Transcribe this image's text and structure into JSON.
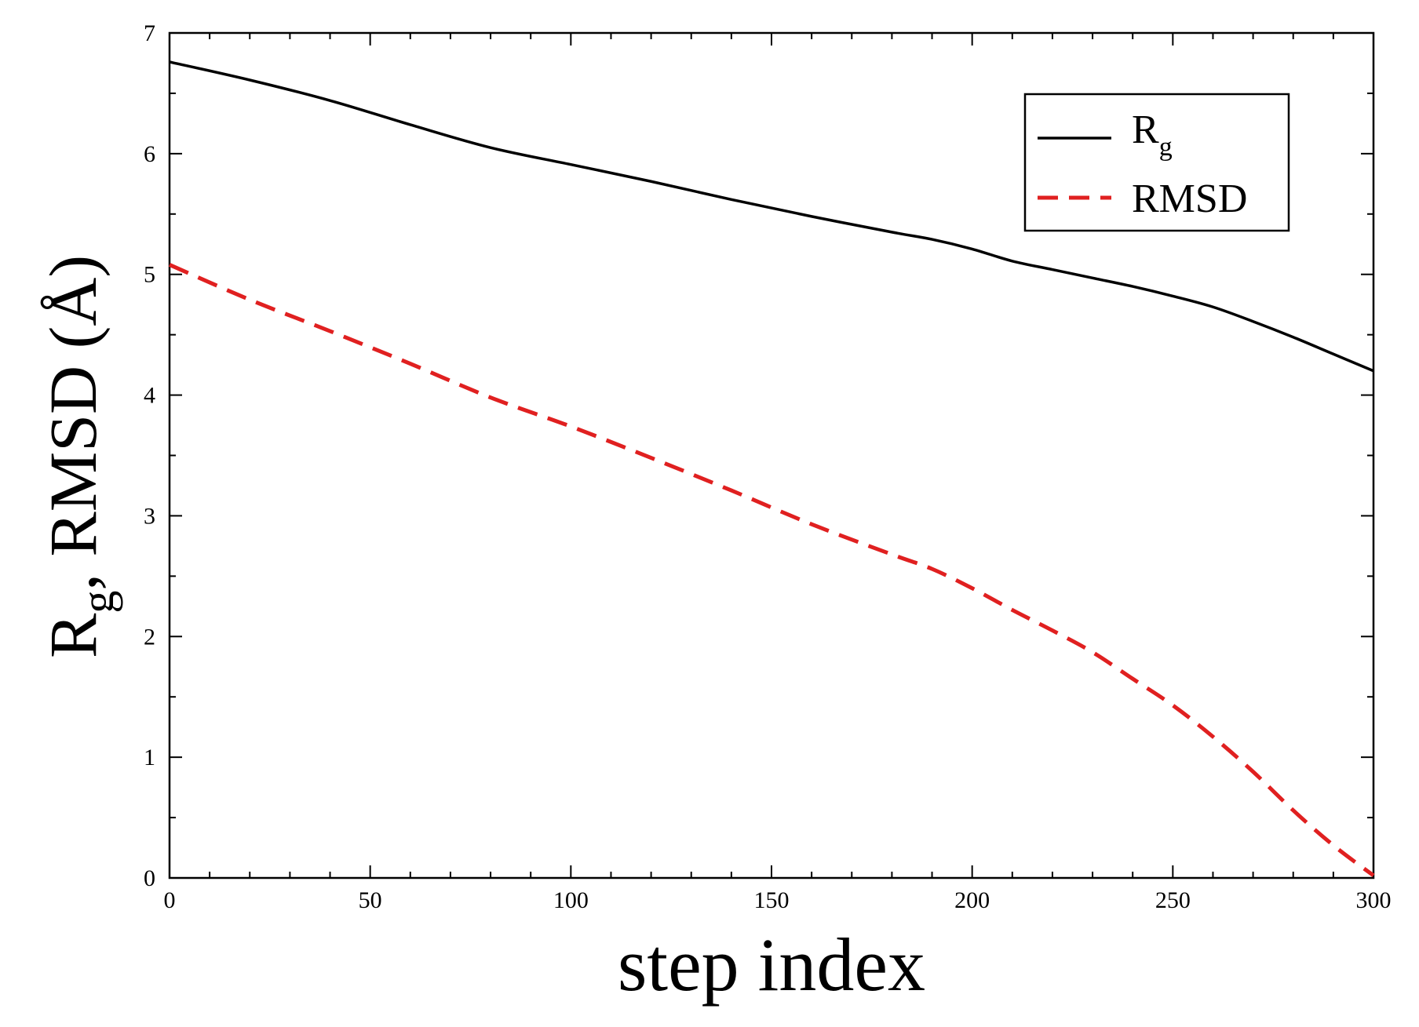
{
  "chart_data": {
    "type": "line",
    "xlabel": "step index",
    "ylabel": {
      "main": "R",
      "sub": "g",
      "rest": ", RMSD (Å)"
    },
    "xlim": [
      0,
      300
    ],
    "ylim": [
      0,
      7
    ],
    "xticks": [
      0,
      50,
      100,
      150,
      200,
      250,
      300
    ],
    "yticks": [
      0,
      1,
      2,
      3,
      4,
      5,
      6,
      7
    ],
    "xtick_labels": [
      "0",
      "50",
      "100",
      "150",
      "200",
      "250",
      "300"
    ],
    "ytick_labels": [
      "0",
      "1",
      "2",
      "3",
      "4",
      "5",
      "6",
      "7"
    ],
    "x_minor_step": 10,
    "y_minor_step": 0.5,
    "grid": false,
    "legend_position": "top-right",
    "series": [
      {
        "name": "R",
        "name_sub": "g",
        "color": "#000000",
        "style": "solid",
        "x": [
          0,
          20,
          40,
          60,
          80,
          100,
          120,
          140,
          160,
          180,
          190,
          200,
          210,
          220,
          230,
          240,
          250,
          260,
          270,
          280,
          290,
          300
        ],
        "y": [
          6.76,
          6.61,
          6.44,
          6.24,
          6.05,
          5.91,
          5.77,
          5.62,
          5.48,
          5.35,
          5.29,
          5.21,
          5.11,
          5.04,
          4.97,
          4.9,
          4.82,
          4.73,
          4.61,
          4.48,
          4.34,
          4.2
        ]
      },
      {
        "name": "RMSD",
        "color": "#e02020",
        "style": "dashed",
        "x": [
          0,
          20,
          40,
          60,
          80,
          100,
          120,
          140,
          160,
          180,
          190,
          200,
          210,
          220,
          230,
          240,
          250,
          260,
          270,
          280,
          290,
          300
        ],
        "y": [
          5.08,
          4.79,
          4.53,
          4.26,
          3.98,
          3.74,
          3.48,
          3.21,
          2.93,
          2.68,
          2.56,
          2.4,
          2.22,
          2.05,
          1.87,
          1.65,
          1.43,
          1.17,
          0.88,
          0.56,
          0.27,
          0.02
        ]
      }
    ]
  }
}
